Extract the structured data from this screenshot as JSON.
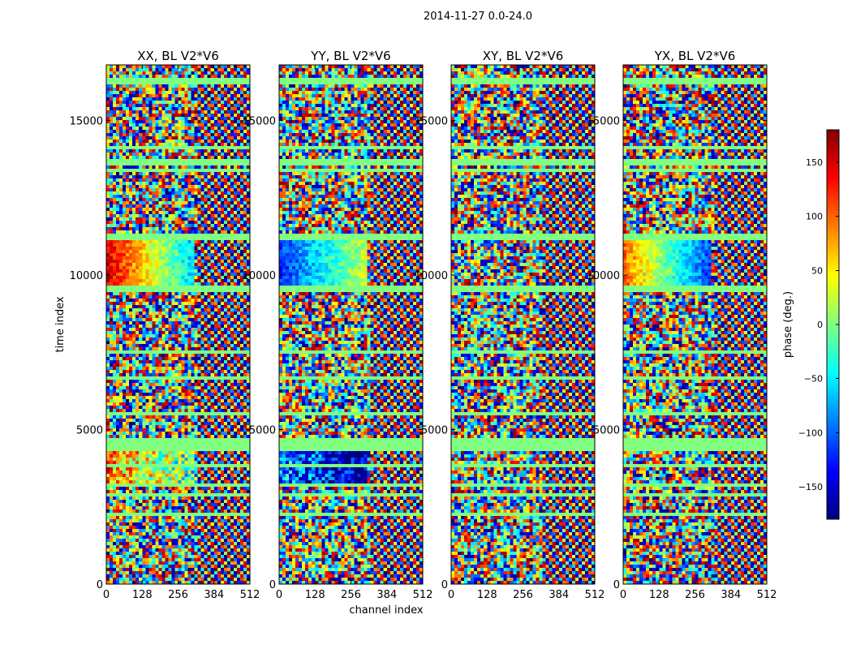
{
  "figure": {
    "suptitle": "2014-11-27 0.0-24.0"
  },
  "chart_data": {
    "type": "heatmap",
    "xlabel": "channel index",
    "ylabel": "time index",
    "xlim": [
      0,
      512
    ],
    "ylim": [
      0,
      16800
    ],
    "xticks": [
      0,
      128,
      256,
      384,
      512
    ],
    "yticks": [
      0,
      5000,
      10000,
      15000
    ],
    "panels": [
      {
        "title": "XX, BL V2*V6",
        "polarization": "XX",
        "coherent_phase": 150
      },
      {
        "title": "YY, BL V2*V6",
        "polarization": "YY",
        "coherent_phase": -120
      },
      {
        "title": "XY, BL V2*V6",
        "polarization": "XY",
        "coherent_phase": 0
      },
      {
        "title": "YX, BL V2*V6",
        "polarization": "YX",
        "coherent_phase": 100
      }
    ],
    "flagged_time_bands": [
      [
        16200,
        16350
      ],
      [
        14050,
        14150
      ],
      [
        13500,
        13800
      ],
      [
        13300,
        13400
      ],
      [
        11150,
        11300
      ],
      [
        9400,
        9700
      ],
      [
        9220,
        9260
      ],
      [
        7500,
        7560
      ],
      [
        7000,
        7060
      ],
      [
        6650,
        6700
      ],
      [
        5500,
        5560
      ],
      [
        4330,
        4750
      ],
      [
        3750,
        3850
      ],
      [
        3560,
        3620
      ],
      [
        3100,
        3300
      ],
      [
        2800,
        2900
      ],
      [
        2500,
        2560
      ],
      [
        2250,
        2300
      ],
      [
        1850,
        1900
      ]
    ],
    "colorbar": {
      "label": "phase (deg.)",
      "range": [
        -180,
        180
      ],
      "ticks": [
        150,
        100,
        50,
        0,
        -50,
        -100,
        -150
      ],
      "colormap": "jet"
    }
  }
}
